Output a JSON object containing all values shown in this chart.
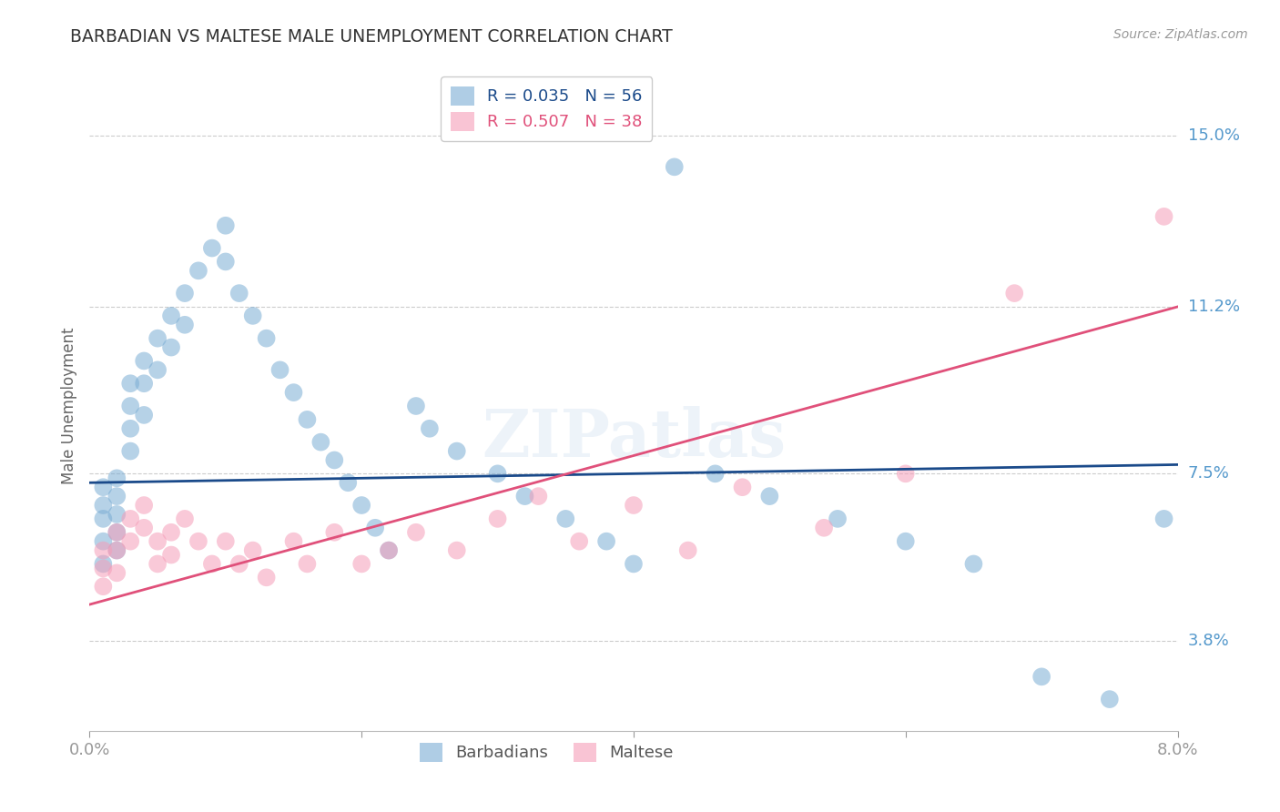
{
  "title": "BARBADIAN VS MALTESE MALE UNEMPLOYMENT CORRELATION CHART",
  "source": "Source: ZipAtlas.com",
  "ylabel": "Male Unemployment",
  "xmin": 0.0,
  "xmax": 0.08,
  "ymin": 0.018,
  "ymax": 0.162,
  "yticks": [
    0.038,
    0.075,
    0.112,
    0.15
  ],
  "ytick_labels": [
    "3.8%",
    "7.5%",
    "11.2%",
    "15.0%"
  ],
  "xticks": [
    0.0,
    0.02,
    0.04,
    0.06,
    0.08
  ],
  "xtick_labels": [
    "0.0%",
    "",
    "",
    "",
    "8.0%"
  ],
  "background_color": "#ffffff",
  "grid_color": "#cccccc",
  "blue_color": "#7aadd4",
  "pink_color": "#f59db8",
  "blue_line_color": "#1a4a8a",
  "pink_line_color": "#e0507a",
  "legend_r_blue": "R = 0.035",
  "legend_n_blue": "N = 56",
  "legend_r_pink": "R = 0.507",
  "legend_n_pink": "N = 38",
  "axis_label_color": "#5599cc",
  "watermark": "ZIPatlas",
  "barbadian_x": [
    0.001,
    0.001,
    0.001,
    0.001,
    0.001,
    0.002,
    0.002,
    0.002,
    0.002,
    0.002,
    0.003,
    0.003,
    0.003,
    0.003,
    0.004,
    0.004,
    0.004,
    0.005,
    0.005,
    0.006,
    0.006,
    0.007,
    0.007,
    0.008,
    0.009,
    0.01,
    0.01,
    0.011,
    0.012,
    0.013,
    0.014,
    0.015,
    0.016,
    0.017,
    0.018,
    0.019,
    0.02,
    0.021,
    0.022,
    0.024,
    0.025,
    0.027,
    0.03,
    0.032,
    0.035,
    0.038,
    0.04,
    0.043,
    0.046,
    0.05,
    0.055,
    0.06,
    0.065,
    0.07,
    0.075,
    0.079
  ],
  "barbadian_y": [
    0.072,
    0.068,
    0.065,
    0.06,
    0.055,
    0.074,
    0.07,
    0.066,
    0.062,
    0.058,
    0.095,
    0.09,
    0.085,
    0.08,
    0.1,
    0.095,
    0.088,
    0.105,
    0.098,
    0.11,
    0.103,
    0.115,
    0.108,
    0.12,
    0.125,
    0.13,
    0.122,
    0.115,
    0.11,
    0.105,
    0.098,
    0.093,
    0.087,
    0.082,
    0.078,
    0.073,
    0.068,
    0.063,
    0.058,
    0.09,
    0.085,
    0.08,
    0.075,
    0.07,
    0.065,
    0.06,
    0.055,
    0.143,
    0.075,
    0.07,
    0.065,
    0.06,
    0.055,
    0.03,
    0.025,
    0.065
  ],
  "maltese_x": [
    0.001,
    0.001,
    0.001,
    0.002,
    0.002,
    0.002,
    0.003,
    0.003,
    0.004,
    0.004,
    0.005,
    0.005,
    0.006,
    0.006,
    0.007,
    0.008,
    0.009,
    0.01,
    0.011,
    0.012,
    0.013,
    0.015,
    0.016,
    0.018,
    0.02,
    0.022,
    0.024,
    0.027,
    0.03,
    0.033,
    0.036,
    0.04,
    0.044,
    0.048,
    0.054,
    0.06,
    0.068,
    0.079
  ],
  "maltese_y": [
    0.058,
    0.054,
    0.05,
    0.062,
    0.058,
    0.053,
    0.065,
    0.06,
    0.068,
    0.063,
    0.06,
    0.055,
    0.062,
    0.057,
    0.065,
    0.06,
    0.055,
    0.06,
    0.055,
    0.058,
    0.052,
    0.06,
    0.055,
    0.062,
    0.055,
    0.058,
    0.062,
    0.058,
    0.065,
    0.07,
    0.06,
    0.068,
    0.058,
    0.072,
    0.063,
    0.075,
    0.115,
    0.132
  ],
  "blue_trend_x": [
    0.0,
    0.08
  ],
  "blue_trend_y": [
    0.073,
    0.077
  ],
  "pink_trend_x": [
    0.0,
    0.08
  ],
  "pink_trend_y": [
    0.046,
    0.112
  ]
}
